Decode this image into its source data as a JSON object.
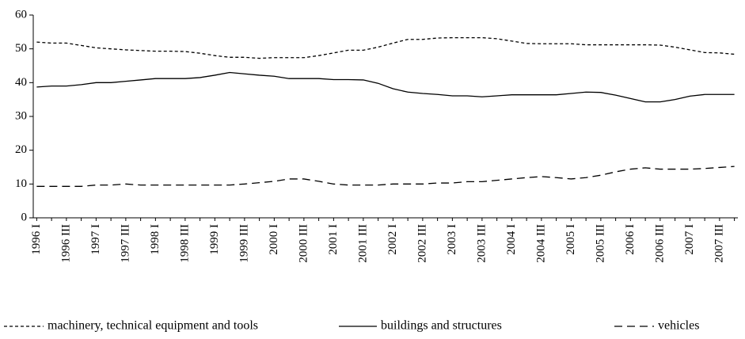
{
  "chart_data": {
    "type": "line",
    "categories": [
      "1996 I",
      null,
      "1996 III",
      null,
      "1997 I",
      null,
      "1997 III",
      null,
      "1998 I",
      null,
      "1998 III",
      null,
      "1999 I",
      null,
      "1999 III",
      null,
      "2000 I",
      null,
      "2000 III",
      null,
      "2001 I",
      null,
      "2001 III",
      null,
      "2002 I",
      null,
      "2002 III",
      null,
      "2003 I",
      null,
      "2003 III",
      null,
      "2004 I",
      null,
      "2004 III",
      null,
      "2005 I",
      null,
      "2005 III",
      null,
      "2006 I",
      null,
      "2006 III",
      null,
      "2007 I",
      null,
      "2007 III",
      null
    ],
    "series": [
      {
        "name": "machinery, technical equipment and tools",
        "color": "#000000",
        "dash": "4,3",
        "values": [
          52,
          51.7,
          51.7,
          51,
          50.3,
          50,
          49.7,
          49.5,
          49.3,
          49.3,
          49.2,
          48.7,
          48,
          47.5,
          47.5,
          47.2,
          47.4,
          47.4,
          47.4,
          48,
          48.8,
          49.6,
          49.6,
          50.5,
          51.7,
          52.8,
          52.8,
          53.2,
          53.3,
          53.3,
          53.3,
          53,
          52.3,
          51.6,
          51.5,
          51.5,
          51.5,
          51.2,
          51.2,
          51.2,
          51.2,
          51.2,
          51.1,
          50.5,
          49.7,
          48.9,
          48.8,
          48.4
        ]
      },
      {
        "name": "buildings and structures",
        "color": "#000000",
        "dash": "none",
        "values": [
          38.7,
          39,
          39,
          39.4,
          40,
          40,
          40.4,
          40.8,
          41.2,
          41.2,
          41.2,
          41.5,
          42.2,
          43,
          42.6,
          42.2,
          41.9,
          41.2,
          41.2,
          41.2,
          40.9,
          40.9,
          40.8,
          39.8,
          38.2,
          37.2,
          36.8,
          36.5,
          36.1,
          36.1,
          35.8,
          36.1,
          36.4,
          36.4,
          36.4,
          36.4,
          36.8,
          37.2,
          37.1,
          36.3,
          35.3,
          34.3,
          34.3,
          35,
          36,
          36.5,
          36.5,
          36.5
        ]
      },
      {
        "name": "vehicles",
        "color": "#000000",
        "dash": "10,6",
        "values": [
          9.3,
          9.3,
          9.3,
          9.3,
          9.7,
          9.7,
          10,
          9.7,
          9.7,
          9.7,
          9.7,
          9.7,
          9.7,
          9.7,
          10,
          10.4,
          10.8,
          11.5,
          11.5,
          10.8,
          10,
          9.7,
          9.7,
          9.7,
          10,
          10,
          10,
          10.3,
          10.3,
          10.7,
          10.7,
          11.1,
          11.5,
          11.9,
          12.2,
          11.9,
          11.5,
          11.9,
          12.6,
          13.6,
          14.4,
          14.8,
          14.4,
          14.4,
          14.4,
          14.6,
          14.9,
          15.2
        ]
      }
    ],
    "ylim": [
      0,
      60
    ],
    "yticks": [
      0,
      10,
      20,
      30,
      40,
      50,
      60
    ],
    "grid": false,
    "legend": "bottom"
  }
}
